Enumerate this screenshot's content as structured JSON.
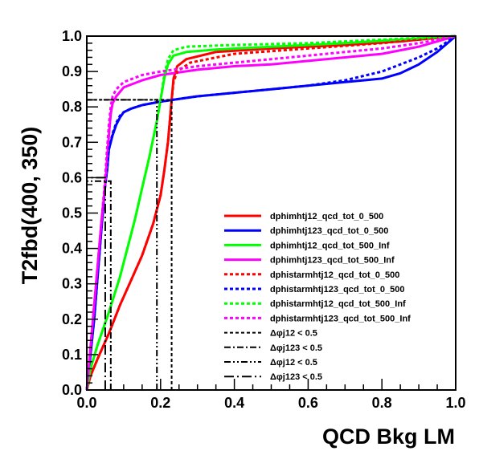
{
  "chart_data": {
    "type": "line",
    "title": "",
    "xlabel": "QCD Bkg LM",
    "ylabel": "T2fbd(400, 350)",
    "xlim": [
      0,
      1
    ],
    "ylim": [
      0,
      1
    ],
    "grid": false,
    "legend_position": "bottom-right",
    "x_ticks": [
      "0.0",
      "0.2",
      "0.4",
      "0.6",
      "0.8",
      "1.0"
    ],
    "y_ticks": [
      "0.0",
      "0.1",
      "0.2",
      "0.3",
      "0.4",
      "0.5",
      "0.6",
      "0.7",
      "0.8",
      "0.9",
      "1.0"
    ],
    "series": [
      {
        "name": "dphimhtj12_qcd_tot_0_500",
        "color": "#ff0000",
        "style": "solid",
        "points": [
          [
            0,
            0
          ],
          [
            0.01,
            0.04
          ],
          [
            0.03,
            0.09
          ],
          [
            0.06,
            0.16
          ],
          [
            0.09,
            0.24
          ],
          [
            0.12,
            0.31
          ],
          [
            0.15,
            0.38
          ],
          [
            0.18,
            0.47
          ],
          [
            0.2,
            0.55
          ],
          [
            0.21,
            0.62
          ],
          [
            0.22,
            0.7
          ],
          [
            0.225,
            0.76
          ],
          [
            0.23,
            0.82
          ],
          [
            0.235,
            0.88
          ],
          [
            0.245,
            0.915
          ],
          [
            0.27,
            0.935
          ],
          [
            0.35,
            0.955
          ],
          [
            0.5,
            0.965
          ],
          [
            0.7,
            0.975
          ],
          [
            0.85,
            0.985
          ],
          [
            1.0,
            1.0
          ]
        ]
      },
      {
        "name": "dphimhtj123_qcd_tot_0_500",
        "color": "#0000ff",
        "style": "solid",
        "points": [
          [
            0,
            0
          ],
          [
            0.01,
            0.1
          ],
          [
            0.02,
            0.2
          ],
          [
            0.03,
            0.33
          ],
          [
            0.04,
            0.46
          ],
          [
            0.05,
            0.58
          ],
          [
            0.055,
            0.62
          ],
          [
            0.06,
            0.68
          ],
          [
            0.07,
            0.72
          ],
          [
            0.08,
            0.75
          ],
          [
            0.09,
            0.77
          ],
          [
            0.1,
            0.785
          ],
          [
            0.12,
            0.795
          ],
          [
            0.15,
            0.805
          ],
          [
            0.2,
            0.815
          ],
          [
            0.3,
            0.83
          ],
          [
            0.4,
            0.84
          ],
          [
            0.5,
            0.85
          ],
          [
            0.6,
            0.86
          ],
          [
            0.7,
            0.87
          ],
          [
            0.75,
            0.875
          ],
          [
            0.8,
            0.88
          ],
          [
            0.85,
            0.895
          ],
          [
            0.9,
            0.92
          ],
          [
            0.95,
            0.955
          ],
          [
            1.0,
            1.0
          ]
        ]
      },
      {
        "name": "dphimhtj12_qcd_tot_500_Inf",
        "color": "#00ff00",
        "style": "solid",
        "points": [
          [
            0,
            0
          ],
          [
            0.01,
            0.06
          ],
          [
            0.03,
            0.13
          ],
          [
            0.06,
            0.22
          ],
          [
            0.09,
            0.32
          ],
          [
            0.11,
            0.4
          ],
          [
            0.13,
            0.48
          ],
          [
            0.15,
            0.57
          ],
          [
            0.17,
            0.66
          ],
          [
            0.19,
            0.76
          ],
          [
            0.2,
            0.82
          ],
          [
            0.21,
            0.88
          ],
          [
            0.22,
            0.92
          ],
          [
            0.235,
            0.945
          ],
          [
            0.27,
            0.955
          ],
          [
            0.35,
            0.962
          ],
          [
            0.5,
            0.97
          ],
          [
            0.7,
            0.98
          ],
          [
            0.85,
            0.99
          ],
          [
            1.0,
            1.0
          ]
        ]
      },
      {
        "name": "dphimhtj123_qcd_tot_500_Inf",
        "color": "#ff00ff",
        "style": "solid",
        "points": [
          [
            0,
            0
          ],
          [
            0.01,
            0.12
          ],
          [
            0.02,
            0.24
          ],
          [
            0.03,
            0.36
          ],
          [
            0.04,
            0.48
          ],
          [
            0.05,
            0.58
          ],
          [
            0.055,
            0.65
          ],
          [
            0.06,
            0.72
          ],
          [
            0.065,
            0.78
          ],
          [
            0.07,
            0.81
          ],
          [
            0.08,
            0.83
          ],
          [
            0.1,
            0.855
          ],
          [
            0.15,
            0.875
          ],
          [
            0.2,
            0.89
          ],
          [
            0.3,
            0.905
          ],
          [
            0.4,
            0.915
          ],
          [
            0.5,
            0.92
          ],
          [
            0.6,
            0.93
          ],
          [
            0.7,
            0.94
          ],
          [
            0.8,
            0.95
          ],
          [
            0.9,
            0.97
          ],
          [
            1.0,
            1.0
          ]
        ]
      },
      {
        "name": "dphistarmhtj12_qcd_tot_0_500",
        "color": "#ff0000",
        "style": "dotted",
        "points": [
          [
            0,
            0
          ],
          [
            0.01,
            0.04
          ],
          [
            0.03,
            0.09
          ],
          [
            0.06,
            0.16
          ],
          [
            0.09,
            0.24
          ],
          [
            0.12,
            0.31
          ],
          [
            0.15,
            0.38
          ],
          [
            0.18,
            0.47
          ],
          [
            0.2,
            0.55
          ],
          [
            0.21,
            0.62
          ],
          [
            0.22,
            0.7
          ],
          [
            0.225,
            0.76
          ],
          [
            0.23,
            0.82
          ],
          [
            0.235,
            0.87
          ],
          [
            0.245,
            0.9
          ],
          [
            0.28,
            0.925
          ],
          [
            0.4,
            0.95
          ],
          [
            0.6,
            0.965
          ],
          [
            0.8,
            0.98
          ],
          [
            1.0,
            1.0
          ]
        ]
      },
      {
        "name": "dphistarmhtj123_qcd_tot_0_500",
        "color": "#0000ff",
        "style": "dotted",
        "points": [
          [
            0,
            0
          ],
          [
            0.01,
            0.1
          ],
          [
            0.02,
            0.2
          ],
          [
            0.03,
            0.33
          ],
          [
            0.04,
            0.46
          ],
          [
            0.05,
            0.58
          ],
          [
            0.055,
            0.62
          ],
          [
            0.06,
            0.68
          ],
          [
            0.07,
            0.725
          ],
          [
            0.08,
            0.755
          ],
          [
            0.09,
            0.775
          ],
          [
            0.1,
            0.785
          ],
          [
            0.12,
            0.795
          ],
          [
            0.15,
            0.805
          ],
          [
            0.2,
            0.815
          ],
          [
            0.3,
            0.83
          ],
          [
            0.4,
            0.84
          ],
          [
            0.5,
            0.85
          ],
          [
            0.6,
            0.86
          ],
          [
            0.7,
            0.875
          ],
          [
            0.8,
            0.9
          ],
          [
            0.9,
            0.94
          ],
          [
            0.95,
            0.965
          ],
          [
            1.0,
            1.0
          ]
        ]
      },
      {
        "name": "dphistarmhtj12_qcd_tot_500_Inf",
        "color": "#00ff00",
        "style": "dotted",
        "points": [
          [
            0,
            0
          ],
          [
            0.01,
            0.06
          ],
          [
            0.03,
            0.13
          ],
          [
            0.06,
            0.22
          ],
          [
            0.09,
            0.32
          ],
          [
            0.11,
            0.4
          ],
          [
            0.13,
            0.48
          ],
          [
            0.15,
            0.57
          ],
          [
            0.17,
            0.66
          ],
          [
            0.19,
            0.76
          ],
          [
            0.2,
            0.82
          ],
          [
            0.21,
            0.89
          ],
          [
            0.22,
            0.935
          ],
          [
            0.235,
            0.96
          ],
          [
            0.27,
            0.97
          ],
          [
            0.4,
            0.975
          ],
          [
            0.6,
            0.98
          ],
          [
            0.8,
            0.99
          ],
          [
            1.0,
            1.0
          ]
        ]
      },
      {
        "name": "dphistarmhtj123_qcd_tot_500_Inf",
        "color": "#ff00ff",
        "style": "dotted",
        "points": [
          [
            0,
            0
          ],
          [
            0.01,
            0.12
          ],
          [
            0.02,
            0.24
          ],
          [
            0.03,
            0.36
          ],
          [
            0.04,
            0.48
          ],
          [
            0.05,
            0.6
          ],
          [
            0.055,
            0.68
          ],
          [
            0.06,
            0.75
          ],
          [
            0.065,
            0.8
          ],
          [
            0.07,
            0.83
          ],
          [
            0.08,
            0.85
          ],
          [
            0.1,
            0.87
          ],
          [
            0.15,
            0.89
          ],
          [
            0.2,
            0.9
          ],
          [
            0.3,
            0.915
          ],
          [
            0.4,
            0.925
          ],
          [
            0.5,
            0.935
          ],
          [
            0.6,
            0.945
          ],
          [
            0.7,
            0.955
          ],
          [
            0.8,
            0.965
          ],
          [
            0.9,
            0.98
          ],
          [
            1.0,
            1.0
          ]
        ]
      }
    ],
    "markers": [
      {
        "name": "Δφj12 < 0.5",
        "color": "#000000",
        "style": "dotted",
        "x": 0.23,
        "y": 0.82
      },
      {
        "name": "Δφj123 < 0.5",
        "color": "#000000",
        "style": "dashdot",
        "x": 0.065,
        "y": 0.59
      },
      {
        "name": "Δφj12 < 0.5",
        "color": "#000000",
        "style": "dashdotdot",
        "x": 0.19,
        "y": 0.82
      },
      {
        "name": "Δφj123 < 0.5",
        "color": "#000000",
        "style": "longdashdot",
        "x": 0.05,
        "y": 0.6
      }
    ]
  }
}
